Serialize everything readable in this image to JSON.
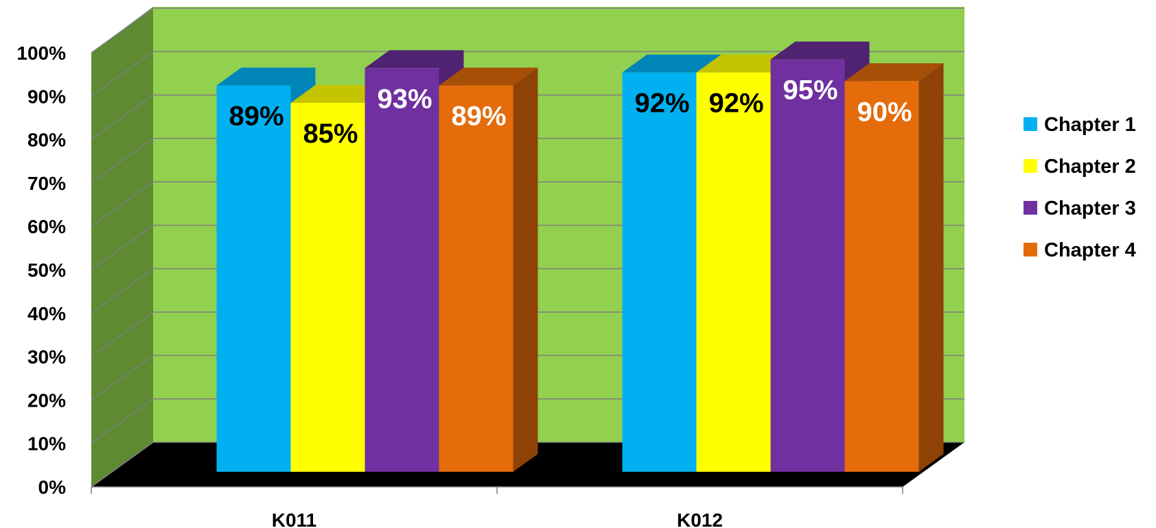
{
  "chart_data": {
    "type": "bar",
    "title": "",
    "xlabel": "",
    "ylabel": "",
    "ylim": [
      0,
      100
    ],
    "yticks": [
      "0%",
      "10%",
      "20%",
      "30%",
      "40%",
      "50%",
      "60%",
      "70%",
      "80%",
      "90%",
      "100%"
    ],
    "categories": [
      "K011",
      "K012"
    ],
    "series": [
      {
        "name": "Chapter 1",
        "values": [
          89,
          92
        ],
        "labels": [
          "89%",
          "92%"
        ],
        "color": "#00B0F0",
        "top": "#0085B8",
        "side": "#0085B8",
        "label_color": "#000000"
      },
      {
        "name": "Chapter 2",
        "values": [
          85,
          92
        ],
        "labels": [
          "85%",
          "92%"
        ],
        "color": "#FFFF00",
        "top": "#C4C400",
        "side": "#C4C400",
        "label_color": "#000000"
      },
      {
        "name": "Chapter 3",
        "values": [
          93,
          95
        ],
        "labels": [
          "93%",
          "95%"
        ],
        "color": "#7030A0",
        "top": "#4F2272",
        "side": "#4F2272",
        "label_color": "#FFFFFF"
      },
      {
        "name": "Chapter 4",
        "values": [
          89,
          90
        ],
        "labels": [
          "89%",
          "90%"
        ],
        "color": "#E46C0A",
        "top": "#A84F07",
        "side": "#8E4206",
        "label_color": "#FFFFFF"
      }
    ],
    "grid": true,
    "legend": "right",
    "colors": {
      "back_wall": "#92D050",
      "side_wall": "#5E8A32",
      "floor": "#000000",
      "gridline": "#7F7F7F"
    }
  }
}
